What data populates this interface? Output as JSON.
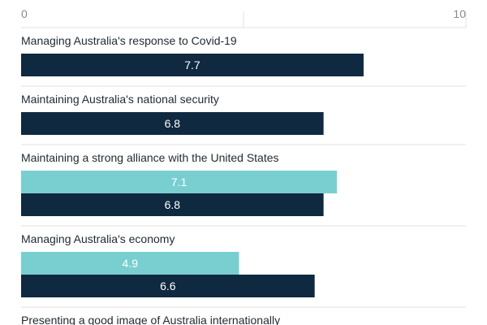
{
  "chart_data": {
    "type": "bar",
    "orientation": "horizontal",
    "title": "",
    "xlabel": "",
    "ylabel": "",
    "xlim": [
      0,
      10
    ],
    "x_ticks": [
      "0",
      "10"
    ],
    "grid": true,
    "legend": "none",
    "colors": {
      "dark": "#0f2940",
      "light": "#79cfd0",
      "grid": "#e2e2e2",
      "text": "#1f2a33",
      "tick": "#8a8a8a"
    },
    "categories": [
      {
        "label": "Managing Australia's response to Covid-19",
        "bars": [
          {
            "value": 7.7,
            "label": "7.7",
            "color": "dark"
          }
        ]
      },
      {
        "label": "Maintaining Australia's national security",
        "bars": [
          {
            "value": 6.8,
            "label": "6.8",
            "color": "dark"
          }
        ]
      },
      {
        "label": "Maintaining a strong alliance with the United States",
        "bars": [
          {
            "value": 7.1,
            "label": "7.1",
            "color": "light"
          },
          {
            "value": 6.8,
            "label": "6.8",
            "color": "dark"
          }
        ]
      },
      {
        "label": "Managing Australia's economy",
        "bars": [
          {
            "value": 4.9,
            "label": "4.9",
            "color": "light"
          },
          {
            "value": 6.6,
            "label": "6.6",
            "color": "dark"
          }
        ]
      },
      {
        "label": "Presenting a good image of Australia internationally",
        "bars": []
      }
    ]
  }
}
